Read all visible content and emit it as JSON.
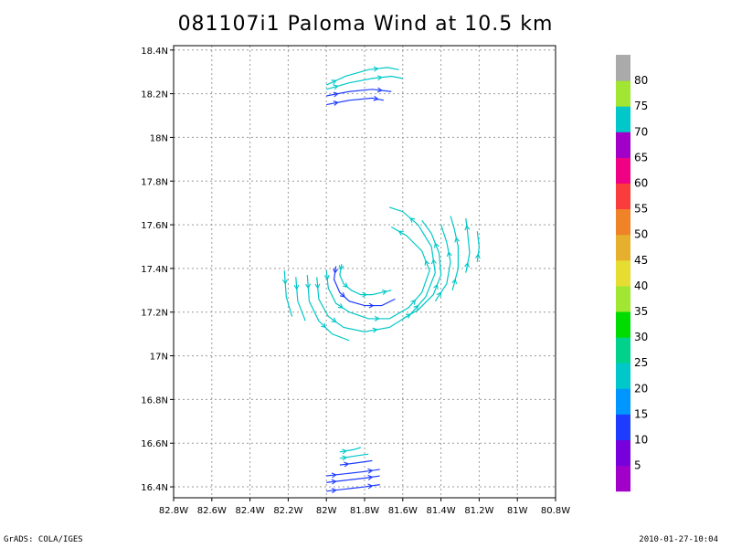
{
  "chart_data": {
    "type": "vector-streamline",
    "title": "081107i1 Paloma Wind at 10.5 km",
    "x_ticks": [
      "82.8W",
      "82.6W",
      "82.4W",
      "82.2W",
      "82W",
      "81.8W",
      "81.6W",
      "81.4W",
      "81.2W",
      "81W",
      "80.8W"
    ],
    "y_ticks": [
      "16.4N",
      "16.6N",
      "16.8N",
      "17N",
      "17.2N",
      "17.4N",
      "17.6N",
      "17.8N",
      "18N",
      "18.2N",
      "18.4N"
    ],
    "xlim": [
      -82.8,
      -80.8
    ],
    "ylim": [
      16.35,
      18.42
    ],
    "grid": true,
    "colorbar": {
      "labels": [
        "5",
        "10",
        "15",
        "20",
        "25",
        "30",
        "35",
        "40",
        "45",
        "50",
        "55",
        "60",
        "65",
        "70",
        "75",
        "80"
      ],
      "colors": [
        "#a000c8",
        "#7800dc",
        "#1e3cff",
        "#0096ff",
        "#00c8c8",
        "#00d28c",
        "#00dc00",
        "#a0e632",
        "#e6dc32",
        "#e6af2d",
        "#f08228",
        "#fa3c3c",
        "#f00082",
        "#a000c8",
        "#00c8c8",
        "#a0e632",
        "#aaaaaa"
      ]
    },
    "streamlines": [
      {
        "speed": 70,
        "points": [
          [
            -82.0,
            18.24
          ],
          [
            -81.9,
            18.28
          ],
          [
            -81.78,
            18.31
          ],
          [
            -81.68,
            18.32
          ],
          [
            -81.62,
            18.31
          ]
        ]
      },
      {
        "speed": 70,
        "points": [
          [
            -82.0,
            18.22
          ],
          [
            -81.88,
            18.25
          ],
          [
            -81.76,
            18.27
          ],
          [
            -81.66,
            18.28
          ],
          [
            -81.6,
            18.27
          ]
        ]
      },
      {
        "speed": 12,
        "points": [
          [
            -82.0,
            18.19
          ],
          [
            -81.88,
            18.21
          ],
          [
            -81.76,
            18.22
          ],
          [
            -81.66,
            18.21
          ]
        ]
      },
      {
        "speed": 12,
        "points": [
          [
            -82.0,
            18.15
          ],
          [
            -81.88,
            18.17
          ],
          [
            -81.76,
            18.18
          ],
          [
            -81.7,
            18.17
          ]
        ]
      },
      {
        "speed": 70,
        "points": [
          [
            -81.92,
            17.42
          ],
          [
            -81.93,
            17.37
          ],
          [
            -81.91,
            17.33
          ],
          [
            -81.87,
            17.3
          ],
          [
            -81.82,
            17.28
          ],
          [
            -81.76,
            17.28
          ],
          [
            -81.71,
            17.29
          ],
          [
            -81.66,
            17.3
          ]
        ]
      },
      {
        "speed": 12,
        "points": [
          [
            -81.95,
            17.41
          ],
          [
            -81.96,
            17.35
          ],
          [
            -81.93,
            17.29
          ],
          [
            -81.88,
            17.25
          ],
          [
            -81.8,
            17.23
          ],
          [
            -81.71,
            17.23
          ],
          [
            -81.64,
            17.26
          ]
        ]
      },
      {
        "speed": 20,
        "points": [
          [
            -82.0,
            17.39
          ],
          [
            -81.99,
            17.31
          ],
          [
            -81.95,
            17.24
          ],
          [
            -81.88,
            17.2
          ],
          [
            -81.78,
            17.17
          ],
          [
            -81.67,
            17.17
          ],
          [
            -81.57,
            17.22
          ],
          [
            -81.5,
            17.29
          ],
          [
            -81.46,
            17.39
          ],
          [
            -81.5,
            17.48
          ],
          [
            -81.58,
            17.55
          ],
          [
            -81.66,
            17.59
          ]
        ]
      },
      {
        "speed": 22,
        "points": [
          [
            -82.05,
            17.36
          ],
          [
            -82.04,
            17.26
          ],
          [
            -81.99,
            17.18
          ],
          [
            -81.91,
            17.13
          ],
          [
            -81.8,
            17.11
          ],
          [
            -81.67,
            17.13
          ],
          [
            -81.56,
            17.19
          ],
          [
            -81.48,
            17.27
          ],
          [
            -81.43,
            17.38
          ],
          [
            -81.45,
            17.5
          ],
          [
            -81.52,
            17.6
          ],
          [
            -81.6,
            17.66
          ],
          [
            -81.67,
            17.68
          ]
        ]
      },
      {
        "speed": 22,
        "points": [
          [
            -82.1,
            17.37
          ],
          [
            -82.09,
            17.25
          ],
          [
            -82.04,
            17.16
          ],
          [
            -81.97,
            17.1
          ],
          [
            -81.88,
            17.07
          ]
        ]
      },
      {
        "speed": 22,
        "points": [
          [
            -82.16,
            17.36
          ],
          [
            -82.15,
            17.25
          ],
          [
            -82.11,
            17.16
          ]
        ]
      },
      {
        "speed": 24,
        "points": [
          [
            -82.22,
            17.39
          ],
          [
            -82.21,
            17.27
          ],
          [
            -82.18,
            17.18
          ]
        ]
      },
      {
        "speed": 22,
        "points": [
          [
            -81.6,
            17.17
          ],
          [
            -81.52,
            17.21
          ],
          [
            -81.44,
            17.28
          ],
          [
            -81.4,
            17.37
          ],
          [
            -81.41,
            17.47
          ],
          [
            -81.45,
            17.56
          ],
          [
            -81.5,
            17.62
          ]
        ]
      },
      {
        "speed": 22,
        "points": [
          [
            -81.43,
            17.25
          ],
          [
            -81.37,
            17.33
          ],
          [
            -81.35,
            17.43
          ],
          [
            -81.37,
            17.52
          ],
          [
            -81.4,
            17.6
          ]
        ]
      },
      {
        "speed": 24,
        "points": [
          [
            -81.34,
            17.3
          ],
          [
            -81.31,
            17.4
          ],
          [
            -81.31,
            17.5
          ],
          [
            -81.33,
            17.58
          ],
          [
            -81.35,
            17.64
          ]
        ]
      },
      {
        "speed": 24,
        "points": [
          [
            -81.27,
            17.38
          ],
          [
            -81.25,
            17.47
          ],
          [
            -81.26,
            17.56
          ],
          [
            -81.27,
            17.63
          ]
        ]
      },
      {
        "speed": 24,
        "points": [
          [
            -81.21,
            17.43
          ],
          [
            -81.2,
            17.5
          ],
          [
            -81.21,
            17.57
          ]
        ]
      },
      {
        "speed": 10,
        "points": [
          [
            -82.0,
            16.38
          ],
          [
            -81.9,
            16.39
          ],
          [
            -81.8,
            16.4
          ],
          [
            -81.72,
            16.41
          ]
        ]
      },
      {
        "speed": 10,
        "points": [
          [
            -82.0,
            16.42
          ],
          [
            -81.9,
            16.43
          ],
          [
            -81.8,
            16.44
          ],
          [
            -81.72,
            16.45
          ]
        ]
      },
      {
        "speed": 12,
        "points": [
          [
            -82.0,
            16.45
          ],
          [
            -81.9,
            16.46
          ],
          [
            -81.8,
            16.47
          ],
          [
            -81.72,
            16.48
          ]
        ]
      },
      {
        "speed": 12,
        "points": [
          [
            -81.93,
            16.5
          ],
          [
            -81.84,
            16.51
          ],
          [
            -81.76,
            16.52
          ]
        ]
      },
      {
        "speed": 24,
        "points": [
          [
            -81.93,
            16.53
          ],
          [
            -81.86,
            16.54
          ],
          [
            -81.78,
            16.55
          ]
        ]
      },
      {
        "speed": 24,
        "points": [
          [
            -81.93,
            16.56
          ],
          [
            -81.86,
            16.57
          ],
          [
            -81.82,
            16.58
          ]
        ]
      }
    ]
  },
  "footer": {
    "left": "GrADS: COLA/IGES",
    "right": "2010-01-27-10:04"
  }
}
